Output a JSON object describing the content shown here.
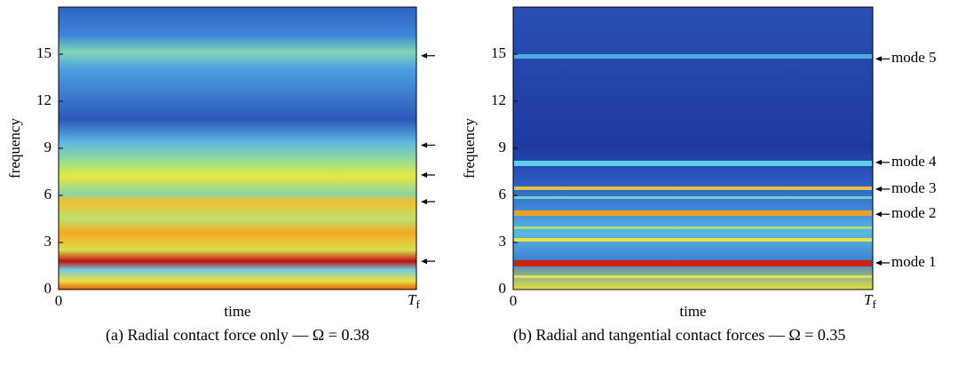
{
  "panels": [
    {
      "ylabel": "frequency",
      "xlabel": "time",
      "x_start": "0",
      "x_end": {
        "main": "T",
        "sub": "f"
      },
      "ylim": [
        0,
        18
      ],
      "yticks": [
        0,
        3,
        6,
        9,
        12,
        15
      ],
      "arrows": [
        1.8,
        5.6,
        7.3,
        9.2,
        14.9
      ],
      "caption": "(a)  Radial contact force only — Ω = 0.38"
    },
    {
      "ylabel": "frequency",
      "xlabel": "time",
      "x_start": "0",
      "x_end": {
        "main": "T",
        "sub": "f"
      },
      "ylim": [
        0,
        18
      ],
      "yticks": [
        0,
        3,
        6,
        9,
        12,
        15
      ],
      "modes": [
        {
          "label": "mode 1",
          "freq": 1.7
        },
        {
          "label": "mode 2",
          "freq": 4.8
        },
        {
          "label": "mode 3",
          "freq": 6.4
        },
        {
          "label": "mode 4",
          "freq": 8.1
        },
        {
          "label": "mode 5",
          "freq": 14.7
        }
      ],
      "caption": "(b)  Radial and tangential contact forces — Ω = 0.35"
    }
  ]
}
